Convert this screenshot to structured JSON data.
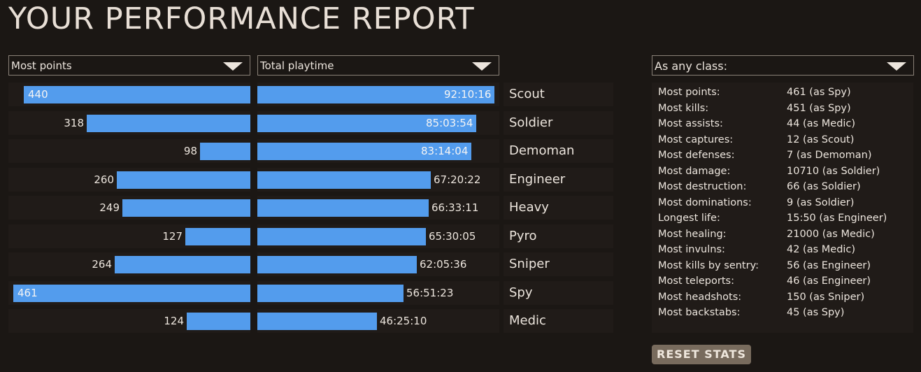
{
  "title": "YOUR PERFORMANCE REPORT",
  "left_dropdown": {
    "selected": "Most points"
  },
  "right_dropdown": {
    "selected": "Total playtime"
  },
  "class_dropdown": {
    "selected": "As any class:"
  },
  "colors": {
    "bar": "#539ced",
    "background": "#1b1714",
    "panel": "#201b18",
    "button": "#786b5d",
    "text": "#ece5dd"
  },
  "classes": [
    {
      "name": "Scout",
      "points": "440",
      "points_value": 440,
      "playtime": "92:10:16",
      "playtime_hours": 92.17
    },
    {
      "name": "Soldier",
      "points": "318",
      "points_value": 318,
      "playtime": "85:03:54",
      "playtime_hours": 85.07
    },
    {
      "name": "Demoman",
      "points": "98",
      "points_value": 98,
      "playtime": "83:14:04",
      "playtime_hours": 83.23
    },
    {
      "name": "Engineer",
      "points": "260",
      "points_value": 260,
      "playtime": "67:20:22",
      "playtime_hours": 67.34
    },
    {
      "name": "Heavy",
      "points": "249",
      "points_value": 249,
      "playtime": "66:33:11",
      "playtime_hours": 66.55
    },
    {
      "name": "Pyro",
      "points": "127",
      "points_value": 127,
      "playtime": "65:30:05",
      "playtime_hours": 65.5
    },
    {
      "name": "Sniper",
      "points": "264",
      "points_value": 264,
      "playtime": "62:05:36",
      "playtime_hours": 62.09
    },
    {
      "name": "Spy",
      "points": "461",
      "points_value": 461,
      "playtime": "56:51:23",
      "playtime_hours": 56.86
    },
    {
      "name": "Medic",
      "points": "124",
      "points_value": 124,
      "playtime": "46:25:10",
      "playtime_hours": 46.42
    }
  ],
  "stats": [
    {
      "label": "Most points:",
      "value": "461 (as Spy)"
    },
    {
      "label": "Most kills:",
      "value": "451 (as Spy)"
    },
    {
      "label": "Most assists:",
      "value": "44 (as Medic)"
    },
    {
      "label": "Most captures:",
      "value": "12 (as Scout)"
    },
    {
      "label": "Most defenses:",
      "value": "7 (as Demoman)"
    },
    {
      "label": "Most damage:",
      "value": "10710 (as Soldier)"
    },
    {
      "label": "Most destruction:",
      "value": "66 (as Soldier)"
    },
    {
      "label": "Most dominations:",
      "value": "9 (as Soldier)"
    },
    {
      "label": "Longest life:",
      "value": "15:50 (as Engineer)"
    },
    {
      "label": "Most healing:",
      "value": "21000 (as Medic)"
    },
    {
      "label": "Most invulns:",
      "value": "42 (as Medic)"
    },
    {
      "label": "Most kills by sentry:",
      "value": "56 (as Engineer)"
    },
    {
      "label": "Most teleports:",
      "value": "46 (as Engineer)"
    },
    {
      "label": "Most headshots:",
      "value": "150 (as Sniper)"
    },
    {
      "label": "Most backstabs:",
      "value": "45 (as Spy)"
    }
  ],
  "reset_button": {
    "label": "RESET STATS"
  },
  "icons": {
    "dropdown": "triangle-down-icon"
  }
}
